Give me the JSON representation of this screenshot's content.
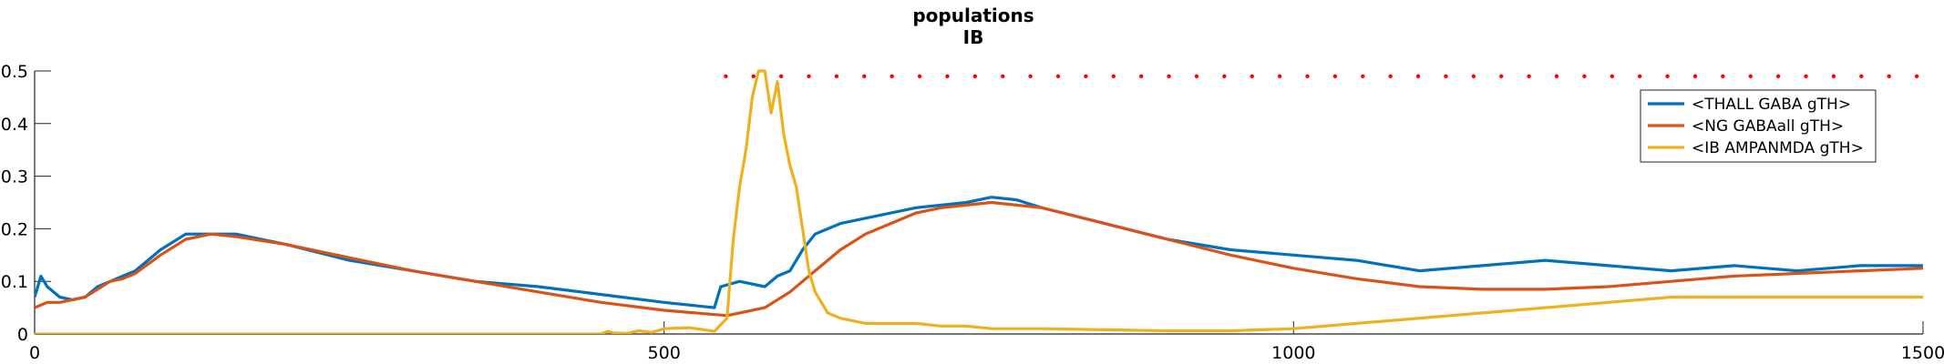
{
  "chart_data": {
    "type": "line",
    "title": "populations",
    "subtitle": "IB",
    "xlabel": "",
    "ylabel": "",
    "xlim": [
      0,
      1500
    ],
    "ylim": [
      0,
      0.5
    ],
    "xticks": [
      0,
      500,
      1000,
      1500
    ],
    "yticks": [
      0,
      0.1,
      0.2,
      0.3,
      0.4,
      0.5
    ],
    "xtick_labels": [
      "0",
      "500",
      "1000",
      "1500"
    ],
    "ytick_labels": [
      "0",
      "0.1",
      "0.2",
      "0.3",
      "0.4",
      "0.5"
    ],
    "grid": false,
    "legend_position": "top-right",
    "series": [
      {
        "name": "<THALL GABA gTH>",
        "color": "#0072BD",
        "x": [
          0,
          5,
          10,
          20,
          30,
          40,
          50,
          60,
          70,
          80,
          100,
          120,
          140,
          160,
          200,
          250,
          300,
          350,
          400,
          450,
          500,
          540,
          545,
          560,
          580,
          590,
          600,
          610,
          620,
          640,
          660,
          680,
          700,
          740,
          760,
          780,
          800,
          850,
          900,
          950,
          1000,
          1050,
          1100,
          1150,
          1200,
          1250,
          1300,
          1350,
          1400,
          1450,
          1500
        ],
        "y": [
          0.07,
          0.11,
          0.09,
          0.07,
          0.065,
          0.07,
          0.09,
          0.1,
          0.11,
          0.12,
          0.16,
          0.19,
          0.19,
          0.19,
          0.17,
          0.14,
          0.12,
          0.1,
          0.09,
          0.075,
          0.06,
          0.05,
          0.09,
          0.1,
          0.09,
          0.11,
          0.12,
          0.16,
          0.19,
          0.21,
          0.22,
          0.23,
          0.24,
          0.25,
          0.26,
          0.255,
          0.24,
          0.21,
          0.18,
          0.16,
          0.15,
          0.14,
          0.12,
          0.13,
          0.14,
          0.13,
          0.12,
          0.13,
          0.12,
          0.13,
          0.13
        ]
      },
      {
        "name": "<NG GABAall gTH>",
        "color": "#D95319",
        "x": [
          0,
          5,
          10,
          20,
          30,
          40,
          50,
          60,
          70,
          80,
          100,
          120,
          140,
          160,
          200,
          250,
          300,
          350,
          400,
          450,
          500,
          550,
          580,
          600,
          620,
          640,
          660,
          680,
          700,
          720,
          740,
          760,
          780,
          800,
          850,
          900,
          950,
          1000,
          1050,
          1100,
          1150,
          1200,
          1250,
          1300,
          1350,
          1400,
          1450,
          1500
        ],
        "y": [
          0.05,
          0.055,
          0.06,
          0.06,
          0.065,
          0.07,
          0.085,
          0.1,
          0.105,
          0.115,
          0.15,
          0.18,
          0.19,
          0.185,
          0.17,
          0.145,
          0.12,
          0.1,
          0.08,
          0.06,
          0.045,
          0.035,
          0.05,
          0.08,
          0.12,
          0.16,
          0.19,
          0.21,
          0.23,
          0.24,
          0.245,
          0.25,
          0.245,
          0.24,
          0.21,
          0.18,
          0.15,
          0.125,
          0.105,
          0.09,
          0.085,
          0.085,
          0.09,
          0.1,
          0.11,
          0.115,
          0.12,
          0.125
        ]
      },
      {
        "name": "<IB AMPANMDA gTH>",
        "color": "#EDB120",
        "x": [
          0,
          450,
          455,
          460,
          470,
          480,
          490,
          500,
          520,
          540,
          550,
          555,
          560,
          565,
          570,
          575,
          580,
          585,
          590,
          595,
          600,
          605,
          610,
          615,
          620,
          625,
          630,
          640,
          650,
          660,
          680,
          700,
          720,
          740,
          760,
          780,
          800,
          850,
          900,
          950,
          1000,
          1050,
          1100,
          1150,
          1200,
          1250,
          1300,
          1350,
          1400,
          1450,
          1500
        ],
        "y": [
          0,
          0,
          0.005,
          0.002,
          0.001,
          0.006,
          0.003,
          0.01,
          0.012,
          0.005,
          0.03,
          0.18,
          0.28,
          0.35,
          0.45,
          0.5,
          0.5,
          0.42,
          0.48,
          0.38,
          0.32,
          0.28,
          0.2,
          0.12,
          0.08,
          0.06,
          0.04,
          0.03,
          0.025,
          0.02,
          0.02,
          0.02,
          0.015,
          0.015,
          0.01,
          0.01,
          0.01,
          0.008,
          0.006,
          0.006,
          0.01,
          0.02,
          0.03,
          0.04,
          0.05,
          0.06,
          0.07,
          0.07,
          0.07,
          0.07,
          0.07
        ]
      }
    ],
    "spike_markers": {
      "color": "#FF0000",
      "y": 0.49,
      "x": [
        549,
        571,
        593,
        615,
        637,
        659,
        681,
        703,
        725,
        747,
        769,
        791,
        813,
        835,
        857,
        879,
        901,
        923,
        945,
        967,
        989,
        1011,
        1033,
        1055,
        1077,
        1099,
        1121,
        1143,
        1165,
        1187,
        1209,
        1231,
        1253,
        1275,
        1297,
        1319,
        1341,
        1363,
        1385,
        1407,
        1429,
        1451,
        1473,
        1495
      ]
    }
  }
}
